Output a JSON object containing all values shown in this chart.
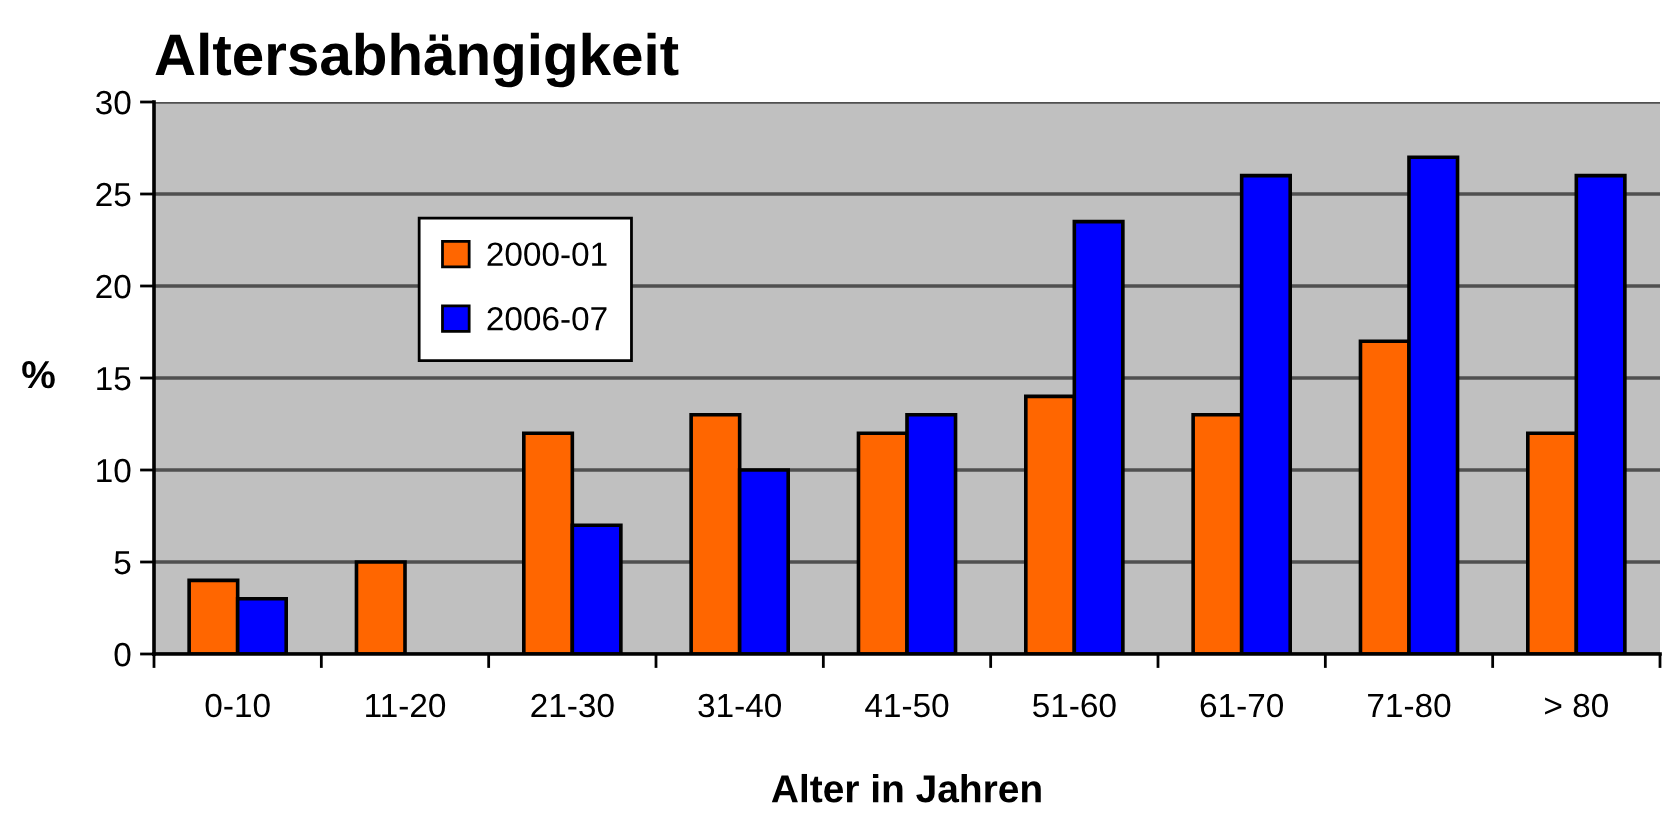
{
  "chart_data": {
    "type": "bar",
    "title": "Altersabhängigkeit",
    "xlabel": "Alter in Jahren",
    "ylabel": "%",
    "categories": [
      "0-10",
      "11-20",
      "21-30",
      "31-40",
      "41-50",
      "51-60",
      "61-70",
      "71-80",
      "> 80"
    ],
    "series": [
      {
        "name": "2000-01",
        "color": "#ff6600",
        "values": [
          4,
          5,
          12,
          13,
          12,
          14,
          13,
          17,
          12
        ]
      },
      {
        "name": "2006-07",
        "color": "#0000ff",
        "values": [
          3,
          null,
          7,
          10,
          13,
          23.5,
          26,
          27,
          26
        ]
      }
    ],
    "ylim": [
      0,
      30
    ],
    "yticks": [
      0,
      5,
      10,
      15,
      20,
      25,
      30
    ],
    "grid": "y",
    "legend": "top left"
  }
}
